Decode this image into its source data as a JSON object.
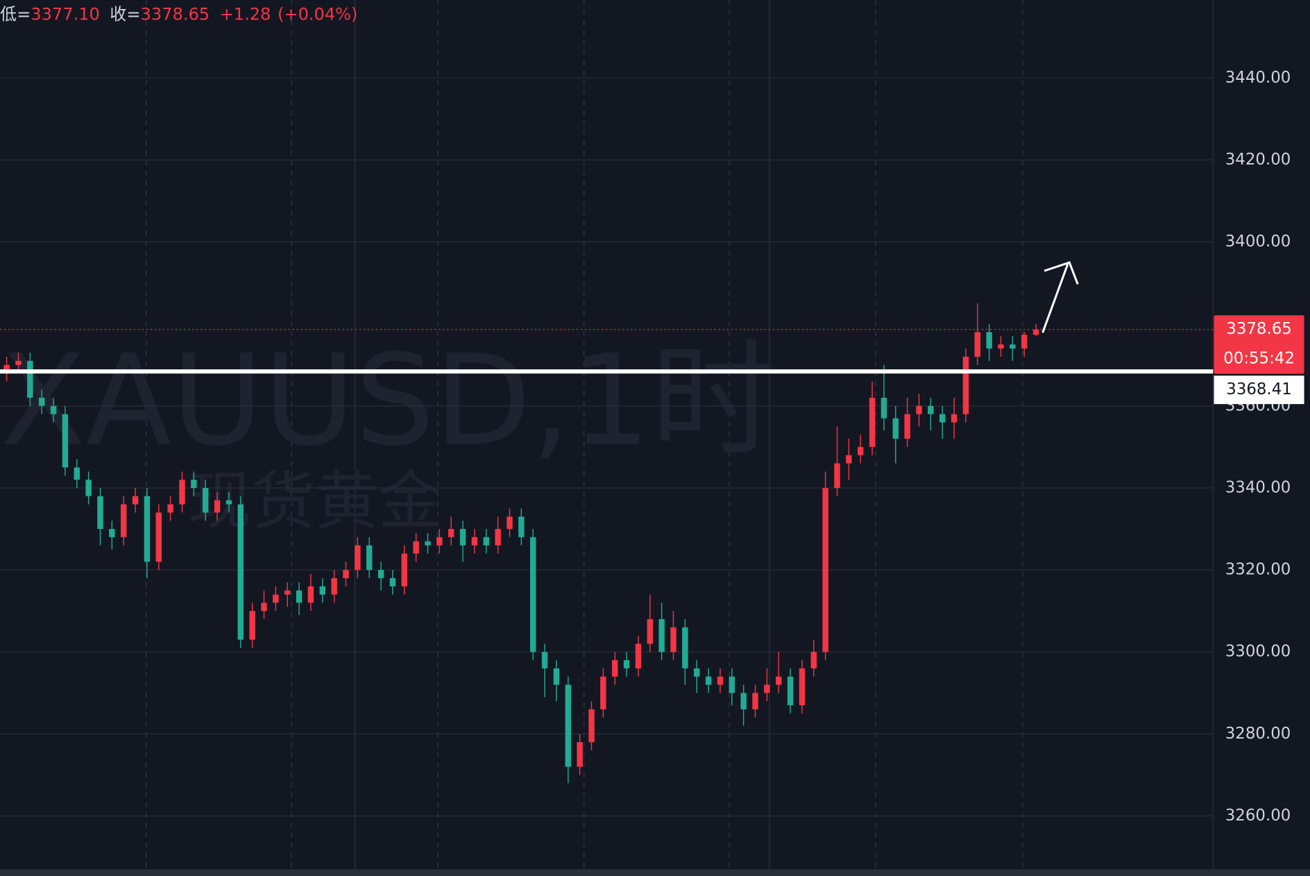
{
  "chart_data": {
    "type": "candlestick",
    "watermark": "XAUUSD,1时",
    "watermark_subtitle": "现货黄金",
    "header": {
      "low_label": "低=",
      "low": "3377.10",
      "close_label": "收=",
      "close": "3378.65",
      "change": "+1.28",
      "change_pct": "(+0.04%)"
    },
    "ylim": [
      3247,
      3459
    ],
    "yticks": [
      {
        "value": 3260,
        "label": "3260.00"
      },
      {
        "value": 3280,
        "label": "3280.00"
      },
      {
        "value": 3300,
        "label": "3300.00"
      },
      {
        "value": 3320,
        "label": "3320.00"
      },
      {
        "value": 3340,
        "label": "3340.00"
      },
      {
        "value": 3360,
        "label": "3360.00"
      },
      {
        "value": 3400,
        "label": "3400.00"
      },
      {
        "value": 3420,
        "label": "3420.00"
      },
      {
        "value": 3440,
        "label": "3440.00"
      }
    ],
    "grid": true,
    "up_color": "#f23645",
    "down_color": "#22ab94",
    "last_price": 3378.65,
    "countdown": "00:55:42",
    "horizontal_line": 3368.41,
    "open": [
      3368,
      3370,
      3371,
      3362,
      3360,
      3358,
      3345,
      3342,
      3338,
      3330,
      3328,
      3336,
      3338,
      3322,
      3334,
      3336,
      3342,
      3340,
      3334,
      3337,
      3336,
      3303,
      3310,
      3312,
      3314,
      3315,
      3312,
      3316,
      3314,
      3318,
      3320,
      3326,
      3320,
      3318,
      3316,
      3324,
      3327,
      3326,
      3328,
      3330,
      3326,
      3328,
      3326,
      3330,
      3333,
      3328,
      3300,
      3296,
      3292,
      3272,
      3278,
      3286,
      3294,
      3298,
      3296,
      3302,
      3308,
      3300,
      3306,
      3296,
      3294,
      3292,
      3294,
      3290,
      3286,
      3290,
      3292,
      3294,
      3287,
      3296,
      3300,
      3340,
      3346,
      3348,
      3350,
      3362,
      3357,
      3352,
      3358,
      3360,
      3358,
      3356,
      3358,
      3372,
      3378,
      3374,
      3375,
      3374,
      3377.37
    ],
    "high": [
      3372,
      3373,
      3373,
      3364,
      3362,
      3360,
      3347,
      3344,
      3340,
      3332,
      3338,
      3340,
      3340,
      3336,
      3338,
      3344,
      3344,
      3342,
      3339,
      3339,
      3338,
      3312,
      3315,
      3316,
      3317,
      3317,
      3319,
      3318,
      3320,
      3322,
      3328,
      3328,
      3322,
      3320,
      3326,
      3329,
      3329,
      3330,
      3333,
      3332,
      3330,
      3330,
      3333,
      3335,
      3335,
      3330,
      3302,
      3298,
      3294,
      3280,
      3288,
      3296,
      3300,
      3300,
      3304,
      3314,
      3312,
      3310,
      3308,
      3298,
      3296,
      3296,
      3296,
      3292,
      3292,
      3296,
      3300,
      3296,
      3298,
      3303,
      3344,
      3355,
      3352,
      3353,
      3366,
      3370,
      3360,
      3362,
      3363,
      3362,
      3360,
      3362,
      3374,
      3385,
      3380,
      3377,
      3377,
      3378,
      3380
    ],
    "low": [
      3366,
      3368,
      3360,
      3358,
      3356,
      3343,
      3340,
      3336,
      3326,
      3325,
      3326,
      3334,
      3318,
      3320,
      3332,
      3334,
      3338,
      3332,
      3332,
      3334,
      3301,
      3301,
      3308,
      3310,
      3311,
      3309,
      3310,
      3312,
      3312,
      3316,
      3318,
      3318,
      3315,
      3314,
      3314,
      3322,
      3324,
      3324,
      3326,
      3322,
      3324,
      3324,
      3324,
      3328,
      3326,
      3298,
      3289,
      3288,
      3268,
      3270,
      3276,
      3284,
      3292,
      3294,
      3294,
      3300,
      3298,
      3298,
      3292,
      3290,
      3290,
      3290,
      3287,
      3282,
      3284,
      3288,
      3290,
      3285,
      3285,
      3294,
      3298,
      3338,
      3342,
      3346,
      3348,
      3354,
      3346,
      3350,
      3355,
      3354,
      3352,
      3352,
      3356,
      3370,
      3371,
      3372,
      3371,
      3372,
      3377.1
    ],
    "close": [
      3370,
      3371,
      3362,
      3360,
      3358,
      3345,
      3342,
      3338,
      3330,
      3328,
      3336,
      3338,
      3322,
      3334,
      3336,
      3342,
      3340,
      3334,
      3337,
      3336,
      3303,
      3310,
      3312,
      3314,
      3315,
      3312,
      3316,
      3314,
      3318,
      3320,
      3326,
      3320,
      3318,
      3316,
      3324,
      3327,
      3326,
      3328,
      3330,
      3326,
      3328,
      3326,
      3330,
      3333,
      3328,
      3300,
      3296,
      3292,
      3272,
      3278,
      3286,
      3294,
      3298,
      3296,
      3302,
      3308,
      3300,
      3306,
      3296,
      3294,
      3292,
      3294,
      3290,
      3286,
      3290,
      3292,
      3294,
      3287,
      3296,
      3300,
      3340,
      3346,
      3348,
      3350,
      3362,
      3357,
      3352,
      3358,
      3360,
      3358,
      3356,
      3358,
      3372,
      3378,
      3374,
      3375,
      3374,
      3377.37,
      3378.65
    ]
  }
}
